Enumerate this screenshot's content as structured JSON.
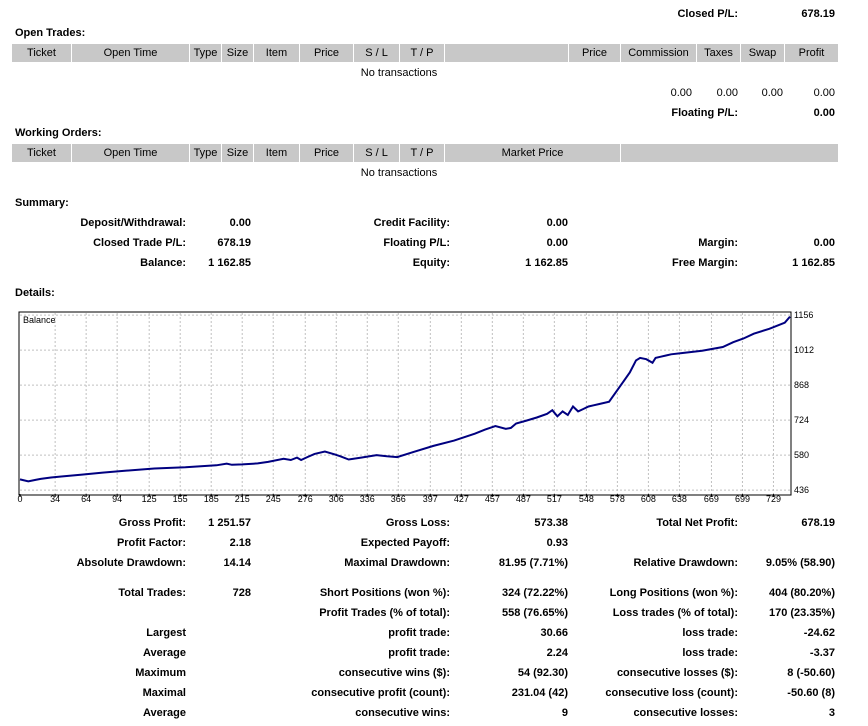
{
  "top": {
    "closed_pl_label": "Closed P/L:",
    "closed_pl_value": "678.19"
  },
  "open_trades": {
    "title": "Open Trades:",
    "columns": [
      "Ticket",
      "Open Time",
      "Type",
      "Size",
      "Item",
      "Price",
      "S / L",
      "T / P",
      "Price",
      "Commission",
      "Taxes",
      "Swap",
      "Profit"
    ],
    "empty_text": "No transactions",
    "totals": {
      "commission": "0.00",
      "taxes": "0.00",
      "swap": "0.00",
      "profit": "0.00"
    },
    "floating_label": "Floating P/L:",
    "floating_value": "0.00"
  },
  "working_orders": {
    "title": "Working Orders:",
    "columns": [
      "Ticket",
      "Open Time",
      "Type",
      "Size",
      "Item",
      "Price",
      "S / L",
      "T / P",
      "Market Price"
    ],
    "empty_text": "No transactions"
  },
  "summary": {
    "title": "Summary:",
    "deposit_label": "Deposit/Withdrawal:",
    "deposit_value": "0.00",
    "closed_label": "Closed Trade P/L:",
    "closed_value": "678.19",
    "balance_label": "Balance:",
    "balance_value": "1 162.85",
    "credit_label": "Credit Facility:",
    "credit_value": "0.00",
    "floating_label": "Floating P/L:",
    "floating_value": "0.00",
    "equity_label": "Equity:",
    "equity_value": "1 162.85",
    "margin_label": "Margin:",
    "margin_value": "0.00",
    "free_margin_label": "Free Margin:",
    "free_margin_value": "1 162.85"
  },
  "details": {
    "title": "Details:"
  },
  "chart_data": {
    "type": "line",
    "title": "Balance",
    "x_ticks": [
      0,
      34,
      64,
      94,
      125,
      155,
      185,
      215,
      245,
      276,
      306,
      336,
      366,
      397,
      427,
      457,
      487,
      517,
      548,
      578,
      608,
      638,
      669,
      699,
      729
    ],
    "y_ticks": [
      436,
      580,
      724,
      868,
      1012,
      1156
    ],
    "xlim": [
      0,
      745
    ],
    "ylim": [
      420,
      1165
    ],
    "series": [
      {
        "name": "Balance",
        "x": [
          0,
          8,
          15,
          20,
          30,
          40,
          60,
          80,
          100,
          130,
          160,
          190,
          200,
          205,
          215,
          230,
          240,
          255,
          262,
          268,
          272,
          278,
          285,
          295,
          305,
          310,
          318,
          330,
          345,
          355,
          365,
          380,
          400,
          420,
          440,
          450,
          460,
          470,
          475,
          480,
          490,
          500,
          510,
          515,
          520,
          525,
          530,
          535,
          540,
          545,
          550,
          555,
          560,
          570,
          580,
          590,
          596,
          600,
          606,
          612,
          615,
          620,
          625,
          630,
          640,
          660,
          680,
          690,
          700,
          710,
          725,
          740,
          745
        ],
        "y": [
          480,
          472,
          478,
          482,
          488,
          492,
          500,
          508,
          515,
          525,
          530,
          538,
          545,
          540,
          542,
          546,
          552,
          565,
          560,
          570,
          560,
          572,
          585,
          595,
          582,
          575,
          562,
          570,
          580,
          575,
          572,
          592,
          618,
          640,
          668,
          685,
          700,
          688,
          692,
          710,
          722,
          735,
          750,
          765,
          740,
          760,
          745,
          780,
          760,
          770,
          780,
          785,
          790,
          800,
          860,
          920,
          970,
          980,
          975,
          960,
          980,
          985,
          990,
          995,
          1000,
          1010,
          1025,
          1045,
          1060,
          1080,
          1100,
          1125,
          1150
        ]
      }
    ]
  },
  "stats": {
    "gross_profit_label": "Gross Profit:",
    "gross_profit_value": "1 251.57",
    "gross_loss_label": "Gross Loss:",
    "gross_loss_value": "573.38",
    "total_net_label": "Total Net Profit:",
    "total_net_value": "678.19",
    "profit_factor_label": "Profit Factor:",
    "profit_factor_value": "2.18",
    "expected_payoff_label": "Expected Payoff:",
    "expected_payoff_value": "0.93",
    "abs_dd_label": "Absolute Drawdown:",
    "abs_dd_value": "14.14",
    "max_dd_label": "Maximal Drawdown:",
    "max_dd_value": "81.95 (7.71%)",
    "rel_dd_label": "Relative Drawdown:",
    "rel_dd_value": "9.05% (58.90)",
    "total_trades_label": "Total Trades:",
    "total_trades_value": "728",
    "short_label": "Short Positions (won %):",
    "short_value": "324 (72.22%)",
    "long_label": "Long Positions (won %):",
    "long_value": "404 (80.20%)",
    "profit_trades_label": "Profit Trades (% of total):",
    "profit_trades_value": "558 (76.65%)",
    "loss_trades_label": "Loss trades (% of total):",
    "loss_trades_value": "170 (23.35%)",
    "largest_label": "Largest",
    "largest_profit_label": "profit trade:",
    "largest_profit_value": "30.66",
    "largest_loss_label": "loss trade:",
    "largest_loss_value": "-24.62",
    "average_label": "Average",
    "average_profit_label": "profit trade:",
    "average_profit_value": "2.24",
    "average_loss_label": "loss trade:",
    "average_loss_value": "-3.37",
    "maximum_label": "Maximum",
    "max_cons_wins_label": "consecutive wins ($):",
    "max_cons_wins_value": "54 (92.30)",
    "max_cons_losses_label": "consecutive losses ($):",
    "max_cons_losses_value": "8 (-50.60)",
    "maximal_label": "Maximal",
    "max_cons_profit_label": "consecutive profit (count):",
    "max_cons_profit_value": "231.04 (42)",
    "max_cons_loss_label": "consecutive loss (count):",
    "max_cons_loss_value": "-50.60 (8)",
    "average2_label": "Average",
    "avg_cons_wins_label": "consecutive wins:",
    "avg_cons_wins_value": "9",
    "avg_cons_losses_label": "consecutive losses:",
    "avg_cons_losses_value": "3"
  }
}
